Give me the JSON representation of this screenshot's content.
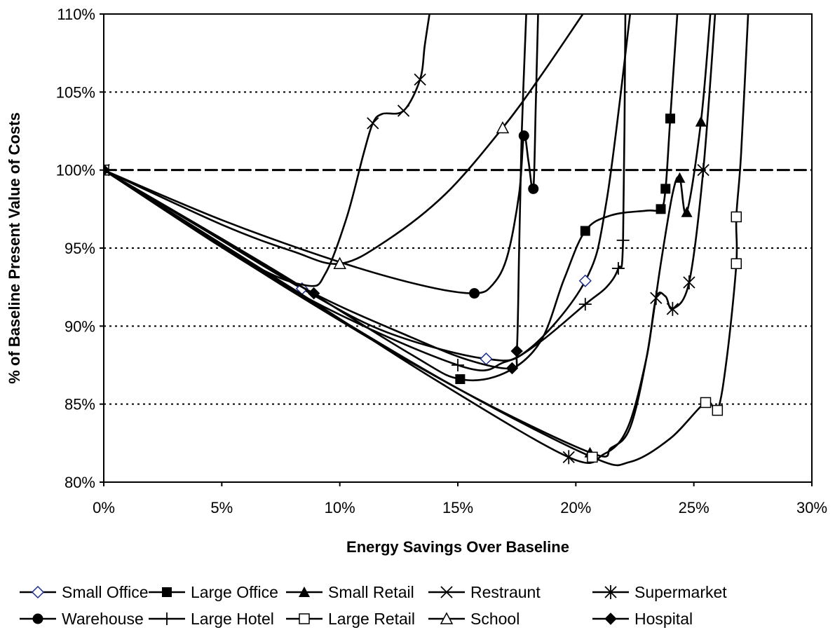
{
  "chart_data": {
    "type": "line",
    "title": "",
    "xlabel": "Energy Savings Over Baseline",
    "ylabel": "% of Baseline Present Value of Costs",
    "xlim": [
      0,
      30
    ],
    "ylim": [
      80,
      110
    ],
    "x_ticks": [
      "0%",
      "5%",
      "10%",
      "15%",
      "20%",
      "25%",
      "30%"
    ],
    "y_ticks": [
      "80%",
      "85%",
      "90%",
      "95%",
      "100%",
      "105%",
      "110%"
    ],
    "grid": "horizontal dotted",
    "reference_line": 100,
    "legend_position": "bottom",
    "series": [
      {
        "name": "Small Office",
        "marker": "diamond-open",
        "points": [
          [
            0,
            100
          ],
          [
            8.4,
            92.4
          ],
          [
            16.2,
            87.9
          ],
          [
            20.4,
            92.9
          ]
        ],
        "curve": [
          [
            0,
            100
          ],
          [
            4,
            96.4
          ],
          [
            8.4,
            92.4
          ],
          [
            12,
            89.6
          ],
          [
            16.2,
            87.9
          ],
          [
            18,
            88.5
          ],
          [
            20.4,
            92.9
          ],
          [
            21.3,
            98
          ],
          [
            22.3,
            110
          ]
        ]
      },
      {
        "name": "Large Office",
        "marker": "square-filled",
        "points": [
          [
            0,
            100
          ],
          [
            15.1,
            86.6
          ],
          [
            20.4,
            96.1
          ],
          [
            23.6,
            97.5
          ],
          [
            23.8,
            98.8
          ],
          [
            24,
            103.3
          ]
        ],
        "curve": [
          [
            0,
            100
          ],
          [
            7,
            93.8
          ],
          [
            13,
            88.2
          ],
          [
            15.1,
            86.6
          ],
          [
            17,
            87
          ],
          [
            18.5,
            89
          ],
          [
            19.5,
            93
          ],
          [
            20.4,
            96.1
          ],
          [
            21.5,
            97.1
          ],
          [
            23,
            97.4
          ],
          [
            23.6,
            97.5
          ],
          [
            23.8,
            98.8
          ],
          [
            24,
            103.3
          ],
          [
            24.3,
            110
          ]
        ]
      },
      {
        "name": "Small Retail",
        "marker": "triangle-filled",
        "points": [
          [
            0,
            100
          ],
          [
            20.6,
            81.9
          ],
          [
            24.4,
            99.5
          ],
          [
            24.7,
            97.3
          ],
          [
            25.3,
            103.1
          ]
        ],
        "curve": [
          [
            0,
            100
          ],
          [
            8,
            92.2
          ],
          [
            15,
            86
          ],
          [
            20.6,
            81.9
          ],
          [
            21.5,
            82.2
          ],
          [
            22.3,
            83.5
          ],
          [
            23,
            88
          ],
          [
            23.6,
            94
          ],
          [
            24.1,
            98.5
          ],
          [
            24.4,
            99.5
          ],
          [
            24.7,
            97.3
          ],
          [
            25.3,
            103.1
          ],
          [
            25.7,
            110
          ]
        ]
      },
      {
        "name": "Restraunt",
        "marker": "x",
        "points": [
          [
            0,
            100
          ],
          [
            11.4,
            103
          ],
          [
            12.7,
            103.8
          ],
          [
            13.4,
            105.8
          ]
        ],
        "curve": [
          [
            0,
            100
          ],
          [
            6,
            94.2
          ],
          [
            8.6,
            92.6
          ],
          [
            9.4,
            93.4
          ],
          [
            10.3,
            97
          ],
          [
            11,
            101
          ],
          [
            11.4,
            103
          ],
          [
            11.8,
            103.6
          ],
          [
            12.7,
            103.8
          ],
          [
            13.4,
            105.8
          ],
          [
            13.6,
            108
          ],
          [
            13.8,
            110
          ]
        ]
      },
      {
        "name": "Supermarket",
        "marker": "star",
        "points": [
          [
            0,
            100
          ],
          [
            19.7,
            81.6
          ],
          [
            23.4,
            91.8
          ],
          [
            24.1,
            91.1
          ],
          [
            24.8,
            92.8
          ],
          [
            25.4,
            100
          ]
        ],
        "curve": [
          [
            0,
            100
          ],
          [
            8,
            92.4
          ],
          [
            14,
            86.6
          ],
          [
            19.7,
            81.6
          ],
          [
            21.2,
            81.8
          ],
          [
            22.2,
            83.5
          ],
          [
            23,
            88
          ],
          [
            23.4,
            91.8
          ],
          [
            23.8,
            91.9
          ],
          [
            24.1,
            91.1
          ],
          [
            24.8,
            92.8
          ],
          [
            25.4,
            100
          ],
          [
            25.9,
            110
          ]
        ]
      },
      {
        "name": "Warehouse",
        "marker": "circle-filled",
        "points": [
          [
            0,
            100
          ],
          [
            15.7,
            92.1
          ],
          [
            17.8,
            102.2
          ],
          [
            18.2,
            98.8
          ]
        ],
        "curve": [
          [
            0,
            100
          ],
          [
            5,
            96.8
          ],
          [
            10,
            94.1
          ],
          [
            13.5,
            92.6
          ],
          [
            15.7,
            92.1
          ],
          [
            16.5,
            92.7
          ],
          [
            17.1,
            94.5
          ],
          [
            17.6,
            98.5
          ],
          [
            17.8,
            102.2
          ],
          [
            18,
            100.5
          ],
          [
            18.2,
            98.8
          ],
          [
            18.3,
            104
          ],
          [
            18.4,
            110
          ]
        ]
      },
      {
        "name": "Large Hotel",
        "marker": "plus",
        "points": [
          [
            0,
            100
          ],
          [
            15,
            87.5
          ],
          [
            20.4,
            91.4
          ],
          [
            21.8,
            93.7
          ],
          [
            22,
            95.5
          ]
        ],
        "curve": [
          [
            0,
            100
          ],
          [
            8,
            92.3
          ],
          [
            15,
            87.5
          ],
          [
            17,
            87.7
          ],
          [
            18.5,
            89
          ],
          [
            20.4,
            91.4
          ],
          [
            21.3,
            92.5
          ],
          [
            21.8,
            93.7
          ],
          [
            22,
            95.5
          ],
          [
            22.1,
            110
          ]
        ]
      },
      {
        "name": "Large Retail",
        "marker": "square-open",
        "points": [
          [
            0,
            100
          ],
          [
            20.7,
            81.6
          ],
          [
            25.5,
            85.1
          ],
          [
            26,
            84.6
          ],
          [
            26.8,
            94
          ],
          [
            26.8,
            97
          ]
        ],
        "curve": [
          [
            0,
            100
          ],
          [
            8,
            92.3
          ],
          [
            15,
            86
          ],
          [
            20.7,
            81.6
          ],
          [
            22.3,
            81.3
          ],
          [
            24,
            82.8
          ],
          [
            25.5,
            85.1
          ],
          [
            26,
            84.6
          ],
          [
            26.4,
            88
          ],
          [
            26.8,
            94
          ],
          [
            26.8,
            97
          ],
          [
            27,
            101
          ],
          [
            27.3,
            110
          ]
        ]
      },
      {
        "name": "School",
        "marker": "triangle-open",
        "points": [
          [
            0,
            100
          ],
          [
            10,
            94
          ],
          [
            16.9,
            102.7
          ]
        ],
        "curve": [
          [
            0,
            100
          ],
          [
            5,
            96.5
          ],
          [
            8,
            94.8
          ],
          [
            10,
            94
          ],
          [
            12,
            95.5
          ],
          [
            14.5,
            98.5
          ],
          [
            16.9,
            102.7
          ],
          [
            18.5,
            106
          ],
          [
            20.3,
            110
          ]
        ]
      },
      {
        "name": "Hospital",
        "marker": "diamond-filled",
        "points": [
          [
            0,
            100
          ],
          [
            8.9,
            92.1
          ],
          [
            17.3,
            87.3
          ],
          [
            17.5,
            88.4
          ]
        ],
        "curve": [
          [
            0,
            100
          ],
          [
            5,
            95.6
          ],
          [
            8.9,
            92.1
          ],
          [
            13,
            89.3
          ],
          [
            15.5,
            87.8
          ],
          [
            17.3,
            87.3
          ],
          [
            17.5,
            88.4
          ],
          [
            17.6,
            95
          ],
          [
            17.7,
            102
          ],
          [
            17.9,
            110
          ]
        ]
      }
    ]
  }
}
